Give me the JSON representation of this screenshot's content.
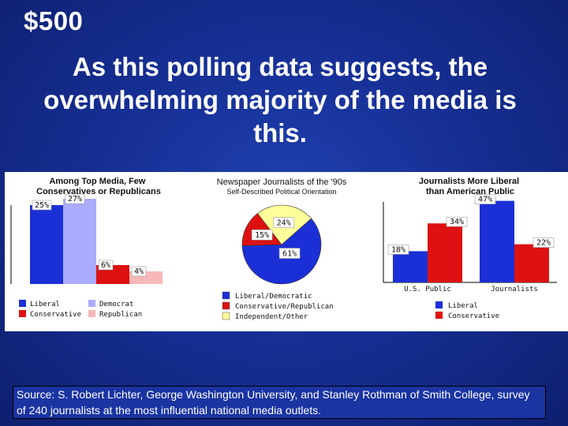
{
  "header": {
    "price": "$500",
    "question": "As this polling data suggests, the overwhelming majority of the media is this."
  },
  "source": "Source: S. Robert Lichter, George Washington University, and Stanley Rothman of Smith College, survey of 240 journalists at the most influential national media outlets.",
  "colors": {
    "liberal": "#1b2fd6",
    "conservative": "#dd1111",
    "democrat": "#aaaaff",
    "republican": "#f6b8b8",
    "independent": "#ffff99"
  },
  "chart_data": [
    {
      "type": "bar",
      "title": "Among Top Media, Few Conservatives or Republicans",
      "categories": [
        "Liberal",
        "Democrat",
        "Conservative",
        "Republican"
      ],
      "values": [
        25,
        27,
        6,
        4
      ],
      "data_labels": [
        "25%",
        "27%",
        "6%",
        "4%"
      ],
      "legend": [
        "Liberal",
        "Democrat",
        "Conservative",
        "Republican"
      ],
      "ylim": [
        0,
        30
      ]
    },
    {
      "type": "pie",
      "title": "Newspaper Journalists of the '90s",
      "subtitle": "Self-Described Political Orientation",
      "labels": [
        "Liberal/Democratic",
        "Conservative/Republican",
        "Independent/Other"
      ],
      "values": [
        61,
        15,
        24
      ],
      "data_labels": [
        "61%",
        "15%",
        "24%"
      ]
    },
    {
      "type": "bar",
      "title": "Journalists More Liberal than American Public",
      "categories": [
        "U.S. Public",
        "Journalists"
      ],
      "series": [
        {
          "name": "Liberal",
          "values": [
            18,
            47
          ]
        },
        {
          "name": "Conservative",
          "values": [
            34,
            22
          ]
        }
      ],
      "data_labels": [
        [
          "18%",
          "47%"
        ],
        [
          "34%",
          "22%"
        ]
      ],
      "ylim": [
        0,
        50
      ]
    }
  ]
}
